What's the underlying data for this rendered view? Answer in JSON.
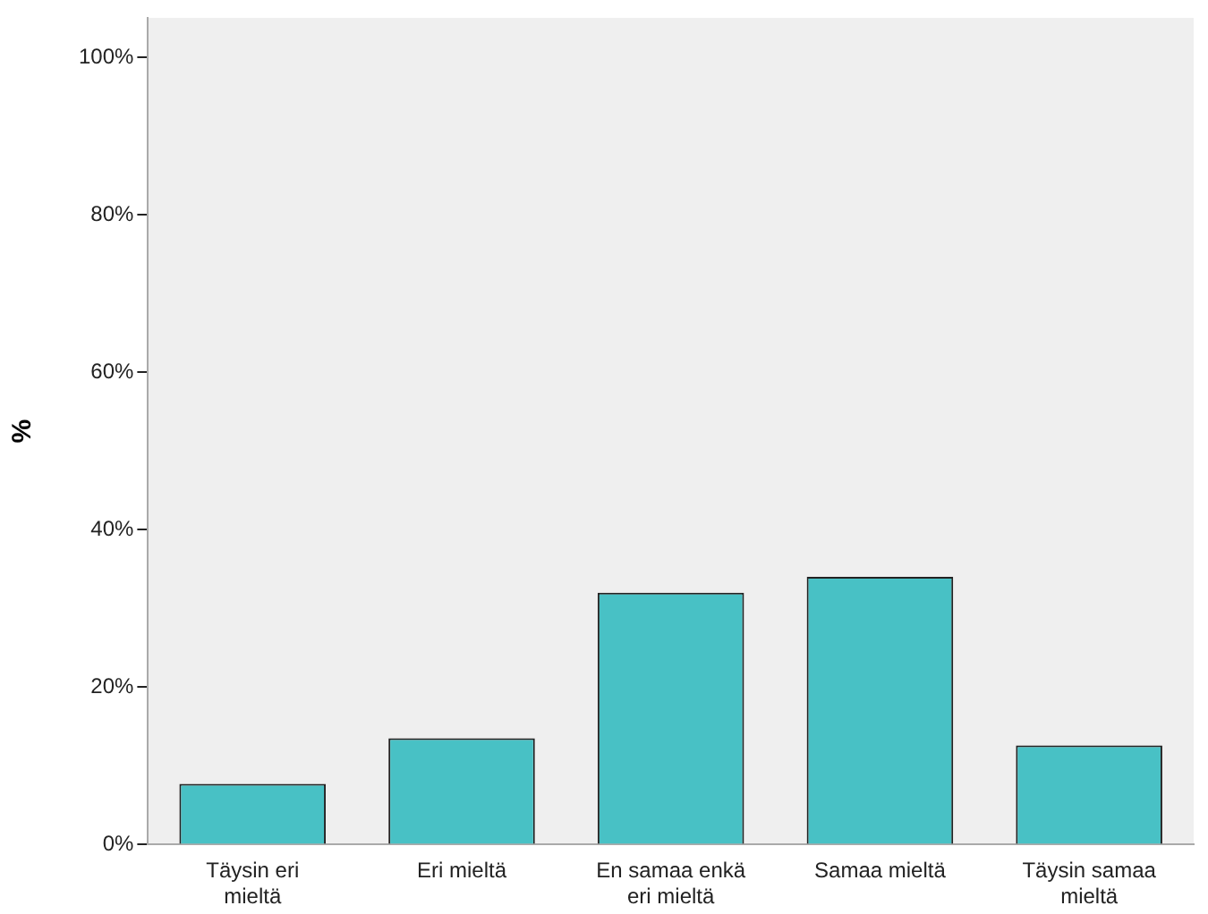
{
  "chart_data": {
    "type": "bar",
    "ylabel": "%",
    "categories": [
      "Täysin eri mieltä",
      "Eri mieltä",
      "En samaa enkä eri mieltä",
      "Samaa mieltä",
      "Täysin samaa mieltä"
    ],
    "values": [
      7.7,
      13.5,
      32.0,
      34.0,
      12.6
    ],
    "color": "#48c1c5",
    "ylim": [
      0,
      105
    ],
    "yticks": [
      {
        "value": 0,
        "label": "0%"
      },
      {
        "value": 20,
        "label": "20%"
      },
      {
        "value": 40,
        "label": "40%"
      },
      {
        "value": 60,
        "label": "60%"
      },
      {
        "value": 80,
        "label": "80%"
      },
      {
        "value": 100,
        "label": "100%"
      }
    ],
    "grid": false,
    "legend": false
  }
}
